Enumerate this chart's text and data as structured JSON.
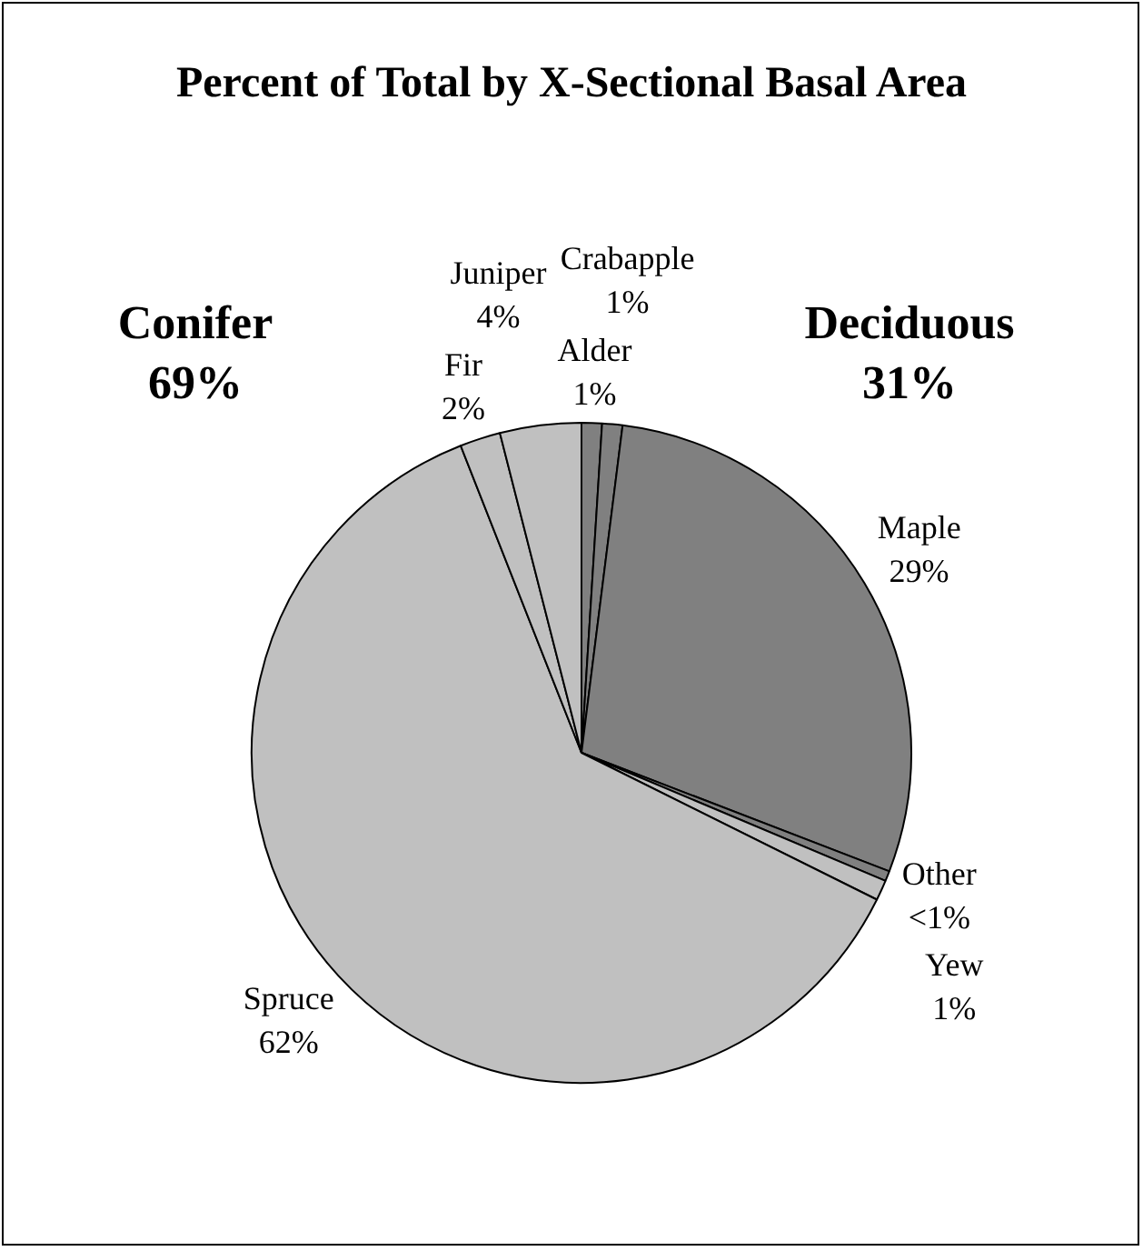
{
  "chart_data": {
    "type": "pie",
    "title": "Percent of Total by X-Sectional Basal Area",
    "categories": [
      "Alder",
      "Crabapple",
      "Maple",
      "Other",
      "Yew",
      "Spruce",
      "Fir",
      "Juniper"
    ],
    "values": [
      1,
      1,
      29,
      0.5,
      1,
      62,
      2,
      4
    ],
    "colors": [
      "#808080",
      "#808080",
      "#808080",
      "#808080",
      "#c0c0c0",
      "#c0c0c0",
      "#c0c0c0",
      "#c0c0c0"
    ],
    "value_labels": [
      "1%",
      "1%",
      "29%",
      "<1%",
      "1%",
      "62%",
      "2%",
      "4%"
    ],
    "annotations": [
      "Conifer 69%",
      "Deciduous 31%"
    ]
  }
}
